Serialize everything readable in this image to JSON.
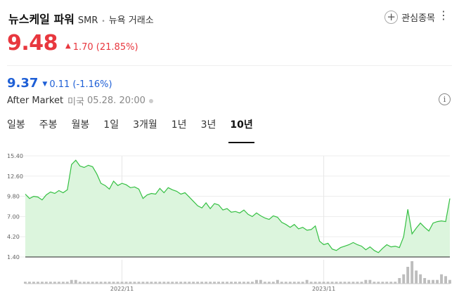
{
  "header": {
    "stock_name": "뉴스케일 파워",
    "ticker": "SMR",
    "separator": "•",
    "exchange": "뉴욕 거래소",
    "watch_label": "관심종목",
    "plus_glyph": "+",
    "more_glyph": "⋮"
  },
  "quote": {
    "price": "9.48",
    "direction_glyph": "▲",
    "change": "1.70 (21.85%)",
    "color": "#e8373e"
  },
  "after_market": {
    "price": "9.37",
    "direction_glyph": "▼",
    "change": "0.11 (-1.16%)",
    "color": "#1e5fd6",
    "label": "After Market",
    "region": "미국",
    "time": "05.28. 20:00",
    "info_glyph": "i"
  },
  "tabs": [
    {
      "label": "일봉",
      "active": false
    },
    {
      "label": "주봉",
      "active": false
    },
    {
      "label": "월봉",
      "active": false
    },
    {
      "label": "1일",
      "active": false
    },
    {
      "label": "3개월",
      "active": false
    },
    {
      "label": "1년",
      "active": false
    },
    {
      "label": "3년",
      "active": false
    },
    {
      "label": "10년",
      "active": true
    }
  ],
  "chart_data": {
    "type": "area",
    "y_ticks": [
      "15.40",
      "12.60",
      "9.80",
      "7.00",
      "4.20",
      "1.40"
    ],
    "ylim": [
      1.4,
      15.4
    ],
    "x_ticks": [
      {
        "label": "2022/11",
        "index": 23
      },
      {
        "label": "2023/11",
        "index": 71
      }
    ],
    "line_color": "#35c043",
    "fill_color": "#dcf5dd",
    "grid": true,
    "values": [
      10.1,
      9.5,
      9.8,
      9.7,
      9.3,
      10.0,
      10.4,
      10.2,
      10.6,
      10.3,
      10.7,
      14.2,
      14.8,
      14.0,
      13.8,
      14.1,
      13.9,
      12.9,
      11.6,
      11.3,
      10.8,
      11.9,
      11.3,
      11.6,
      11.4,
      11.0,
      11.1,
      10.8,
      9.5,
      10.0,
      10.2,
      10.1,
      10.9,
      10.3,
      11.0,
      10.7,
      10.5,
      10.1,
      10.3,
      9.7,
      9.1,
      8.5,
      8.2,
      8.9,
      8.1,
      8.8,
      8.6,
      7.9,
      8.1,
      7.6,
      7.7,
      7.5,
      7.9,
      7.3,
      7.0,
      7.5,
      7.1,
      6.8,
      6.6,
      7.1,
      6.9,
      6.2,
      5.9,
      5.5,
      5.9,
      5.3,
      5.5,
      5.1,
      5.2,
      5.7,
      3.6,
      3.1,
      3.3,
      2.5,
      2.3,
      2.7,
      2.9,
      3.1,
      3.4,
      3.1,
      2.9,
      2.4,
      2.8,
      2.3,
      2.0,
      2.6,
      3.1,
      2.8,
      2.9,
      2.7,
      4.2,
      8.0,
      4.6,
      5.4,
      6.1,
      5.5,
      5.0,
      6.1,
      6.3,
      6.4,
      6.3,
      9.5
    ],
    "volume": [
      1,
      1,
      1,
      1,
      1,
      1,
      1,
      1,
      1,
      1,
      1,
      2,
      2,
      1,
      1,
      1,
      1,
      1,
      1,
      1,
      1,
      1,
      1,
      1,
      1,
      1,
      1,
      1,
      1,
      1,
      1,
      1,
      1,
      1,
      1,
      1,
      1,
      1,
      1,
      1,
      1,
      1,
      1,
      1,
      1,
      1,
      1,
      1,
      1,
      1,
      1,
      1,
      1,
      1,
      1,
      2,
      2,
      1,
      1,
      1,
      2,
      1,
      1,
      1,
      1,
      1,
      1,
      2,
      1,
      1,
      1,
      1,
      1,
      1,
      1,
      1,
      1,
      1,
      1,
      1,
      1,
      2,
      2,
      1,
      1,
      1,
      1,
      1,
      1,
      3,
      5,
      9,
      12,
      7,
      5,
      3,
      2,
      2,
      2,
      5,
      4,
      2
    ]
  }
}
